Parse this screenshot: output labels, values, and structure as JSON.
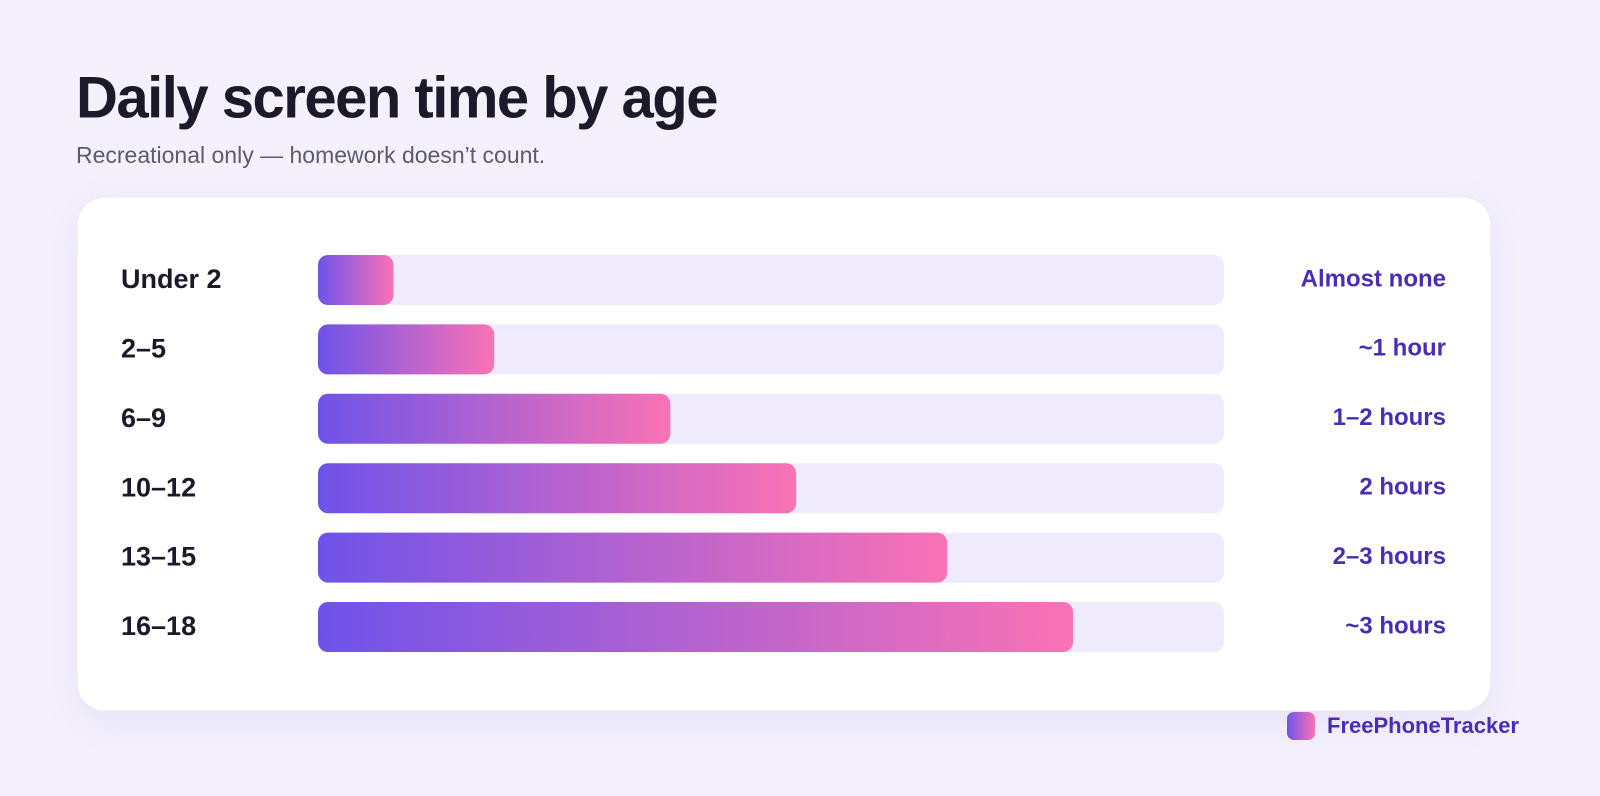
{
  "chart_data": {
    "type": "hbar",
    "title": "Daily screen time by age",
    "subtitle": "Recreational only — homework doesn’t count.",
    "categories": [
      "Under 2",
      "2–5",
      "6–9",
      "10–12",
      "13–15",
      "16–18"
    ],
    "values": [
      0.3,
      0.7,
      1.4,
      1.9,
      2.5,
      3.0
    ],
    "value_labels": [
      "Almost none",
      "~1 hour",
      "1–2 hours",
      "2 hours",
      "2–3 hours",
      "~3 hours"
    ],
    "xlim": [
      0,
      3.6
    ],
    "colors": [
      "#6e53e9",
      "#fa72b5"
    ],
    "branding": "FreePhoneTracker"
  }
}
